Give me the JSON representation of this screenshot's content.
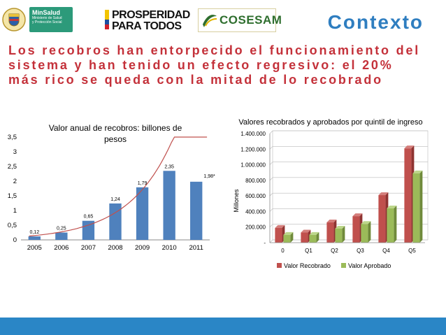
{
  "header": {
    "logo_minsalud": {
      "title": "MinSalud",
      "subtitle_1": "Ministerio de Salud",
      "subtitle_2": "y Protección Social"
    },
    "logo_prosperidad": {
      "line1": "PROSPERIDAD",
      "line2": "PARA TODOS"
    },
    "logo_cosesam": "COSESAM",
    "section_title": "Contexto"
  },
  "headline": "Los recobros han entorpecido el funcionamiento del sistema y han tenido un efecto regresivo: el 20% más rico se queda con la mitad de lo recobrado",
  "colors": {
    "bar_blue": "#4f81bd",
    "trend": "#c0504d",
    "recobrado": "#c0504d",
    "aprobado": "#9bbb59",
    "accent": "#2f7ec0",
    "headline": "#c4313a",
    "footer": "#2a86c6"
  },
  "chart_data": [
    {
      "type": "bar",
      "title": "Valor anual de recobros: billones de pesos",
      "title_line1": "Valor anual de recobros: billones de",
      "title_line2": "pesos",
      "categories": [
        "2005",
        "2006",
        "2007",
        "2008",
        "2009",
        "2010",
        "2011"
      ],
      "values": [
        0.12,
        0.25,
        0.65,
        1.24,
        1.79,
        2.35,
        1.98
      ],
      "data_labels": [
        "0,12",
        "0,25",
        "0,65",
        "1,24",
        "1,79",
        "2,35",
        "1,98*"
      ],
      "ylim": [
        0,
        3.5
      ],
      "yticks": [
        0,
        0.5,
        1,
        1.5,
        2,
        2.5,
        3,
        3.5
      ],
      "ytick_labels": [
        "0",
        "0,5",
        "1",
        "1,5",
        "2",
        "2,5",
        "3",
        "3,5"
      ],
      "trendline": true,
      "grid": false
    },
    {
      "type": "bar",
      "title": "Valores recobrados y aprobados por quintil de ingreso",
      "ylabel": "Millones",
      "categories": [
        "0",
        "Q1",
        "Q2",
        "Q3",
        "Q4",
        "Q5"
      ],
      "series": [
        {
          "name": "Valor Recobrado",
          "values": [
            190000,
            130000,
            260000,
            340000,
            610000,
            1210000
          ]
        },
        {
          "name": "Valor Aprobado",
          "values": [
            100000,
            100000,
            180000,
            240000,
            440000,
            890000
          ]
        }
      ],
      "ylim": [
        0,
        1400000
      ],
      "yticks": [
        0,
        200000,
        400000,
        600000,
        800000,
        1000000,
        1200000,
        1400000
      ],
      "ytick_labels": [
        "-",
        "200.000",
        "400.000",
        "600.000",
        "800.000",
        "1.000.000",
        "1.200.000",
        "1.400.000"
      ],
      "grid": true,
      "legend_position": "bottom"
    }
  ]
}
